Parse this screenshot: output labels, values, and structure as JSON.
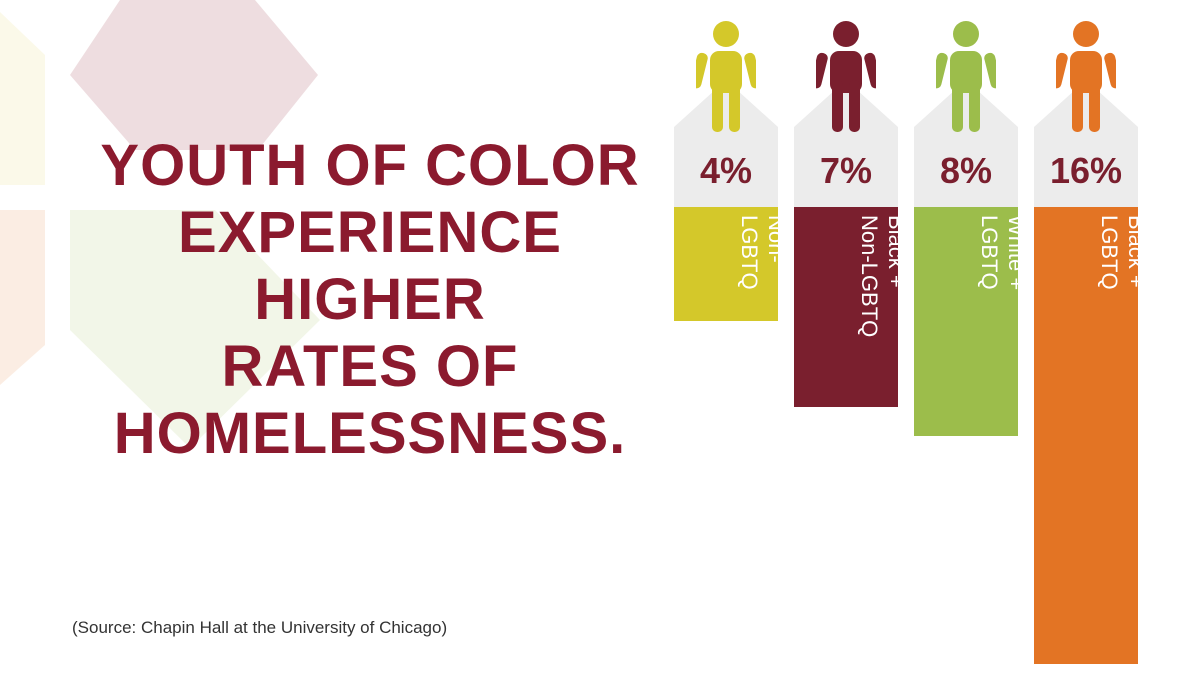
{
  "headline": {
    "lines": [
      "YOUTH OF COLOR",
      "EXPERIENCE",
      "HIGHER",
      "RATES OF",
      "HOMELESSNESS."
    ]
  },
  "source": "(Source: Chapin Hall at the University of Chicago)",
  "colors": {
    "headline": "#8b1a2e",
    "value_text": "#7a1f2e",
    "value_box": "#ececec"
  },
  "chart_data": {
    "type": "bar",
    "categories": [
      "White +\nNon-\nLGBTQ",
      "Black +\nNon-LGBTQ",
      "White +\nLGBTQ",
      "Black +\nLGBTQ"
    ],
    "values": [
      4,
      7,
      8,
      16
    ],
    "value_labels": [
      "4%",
      "7%",
      "8%",
      "16%"
    ],
    "colors": [
      "#d4c82a",
      "#7a1f2e",
      "#9cbd4b",
      "#e37424"
    ],
    "icon": "person-icon",
    "orientation": "vertical-down",
    "ylim": [
      0,
      16
    ],
    "grid": false
  }
}
